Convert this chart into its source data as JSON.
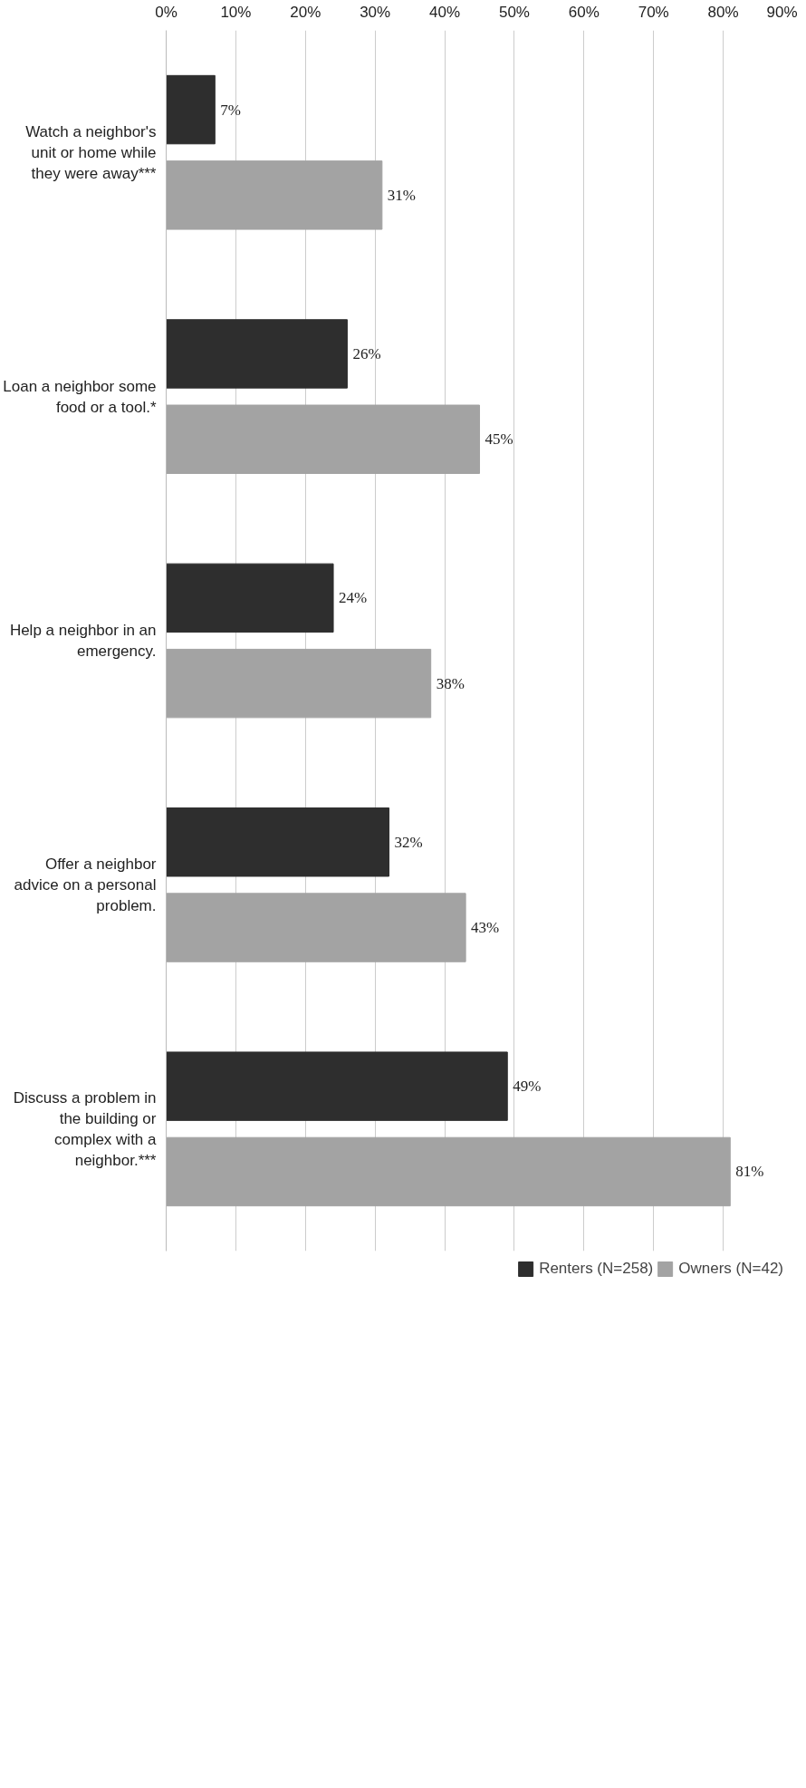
{
  "chart_data": {
    "type": "bar",
    "orientation": "horizontal",
    "categories": [
      "Watch a neighbor's unit or home while they were away***",
      "Loan a neighbor some food or a tool.*",
      "Help a neighbor in an emergency.",
      "Offer a neighbor advice on a personal problem.",
      "Discuss a problem in the building or complex with a neighbor.***"
    ],
    "series": [
      {
        "name": "Renters (N=258)",
        "color": "#2e2e2e",
        "values": [
          7,
          26,
          24,
          32,
          49
        ],
        "value_labels": [
          "7%",
          "26%",
          "24%",
          "32%",
          "49%"
        ]
      },
      {
        "name": "Owners (N=42)",
        "color": "#a3a3a3",
        "values": [
          31,
          45,
          38,
          43,
          81
        ],
        "value_labels": [
          "31%",
          "45%",
          "38%",
          "43%",
          "81%"
        ]
      }
    ],
    "xlim": [
      0,
      90
    ],
    "xticks": [
      {
        "value": 0,
        "label": "0%"
      },
      {
        "value": 10,
        "label": "10%"
      },
      {
        "value": 20,
        "label": "20%"
      },
      {
        "value": 30,
        "label": "30%"
      },
      {
        "value": 40,
        "label": "40%"
      },
      {
        "value": 50,
        "label": "50%"
      },
      {
        "value": 60,
        "label": "60%"
      },
      {
        "value": 70,
        "label": "70%"
      },
      {
        "value": 80,
        "label": "80%"
      },
      {
        "value": 90,
        "label": "90%"
      }
    ],
    "grid": "x",
    "legend": "bottom"
  }
}
